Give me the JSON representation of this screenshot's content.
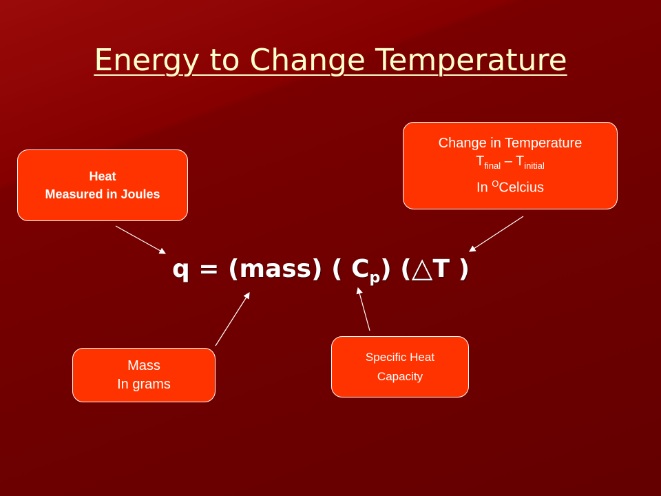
{
  "title": "Energy to Change Temperature",
  "equation": {
    "main": "q = (mass) ( C",
    "subscript": "p",
    "middle": ") (",
    "delta": "△",
    "end": "T )"
  },
  "callouts": {
    "heat": {
      "lines": [
        "Heat",
        "Measured in Joules"
      ]
    },
    "temperature": {
      "line1": "Change in Temperature",
      "t1": "T",
      "sub1": "final",
      "dash": " – T",
      "sub2": "initial",
      "prefix": "In ",
      "sup": "O",
      "unit": "Celcius"
    },
    "mass": {
      "lines": [
        "Mass",
        "In grams"
      ]
    },
    "specific_heat": {
      "lines": [
        "Specific Heat",
        "Capacity"
      ]
    }
  }
}
